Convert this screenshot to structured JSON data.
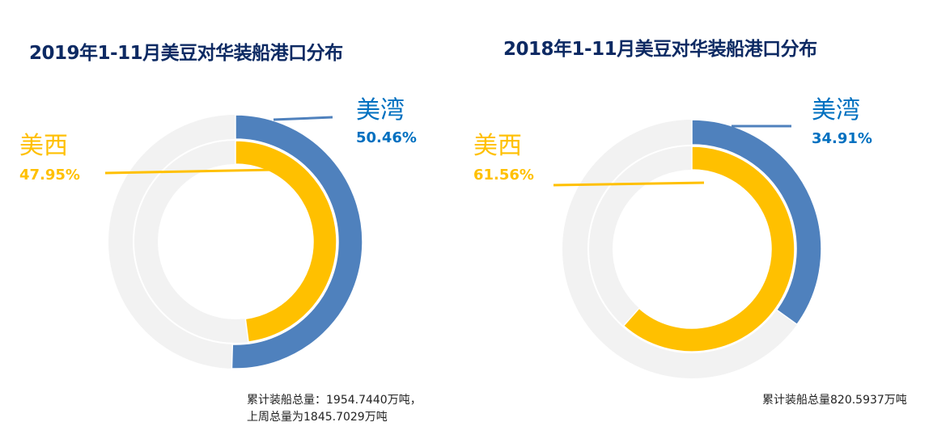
{
  "chart_data": [
    {
      "type": "doughnut",
      "title": "2019年1-11月美豆对华装船港口分布",
      "series": [
        {
          "name": "美湾",
          "value": 50.46,
          "label": "50.46%",
          "color": "#4f81bd",
          "ring": "outer"
        },
        {
          "name": "美西",
          "value": 47.95,
          "label": "47.95%",
          "color": "#ffc000",
          "ring": "inner"
        }
      ],
      "track_color": "#f2f2f2",
      "note_lines": [
        "累计装船总量：1954.7440万吨，",
        "上周总量为1845.7029万吨"
      ]
    },
    {
      "type": "doughnut",
      "title": "2018年1-11月美豆对华装船港口分布",
      "series": [
        {
          "name": "美湾",
          "value": 34.91,
          "label": "34.91%",
          "color": "#4f81bd",
          "ring": "outer"
        },
        {
          "name": "美西",
          "value": 61.56,
          "label": "61.56%",
          "color": "#ffc000",
          "ring": "inner"
        }
      ],
      "track_color": "#f2f2f2",
      "note_lines": [
        "累计装船总量820.5937万吨"
      ]
    }
  ],
  "label_colors": {
    "gulf_text": "#0070c0",
    "west_text": "#ffc000"
  }
}
